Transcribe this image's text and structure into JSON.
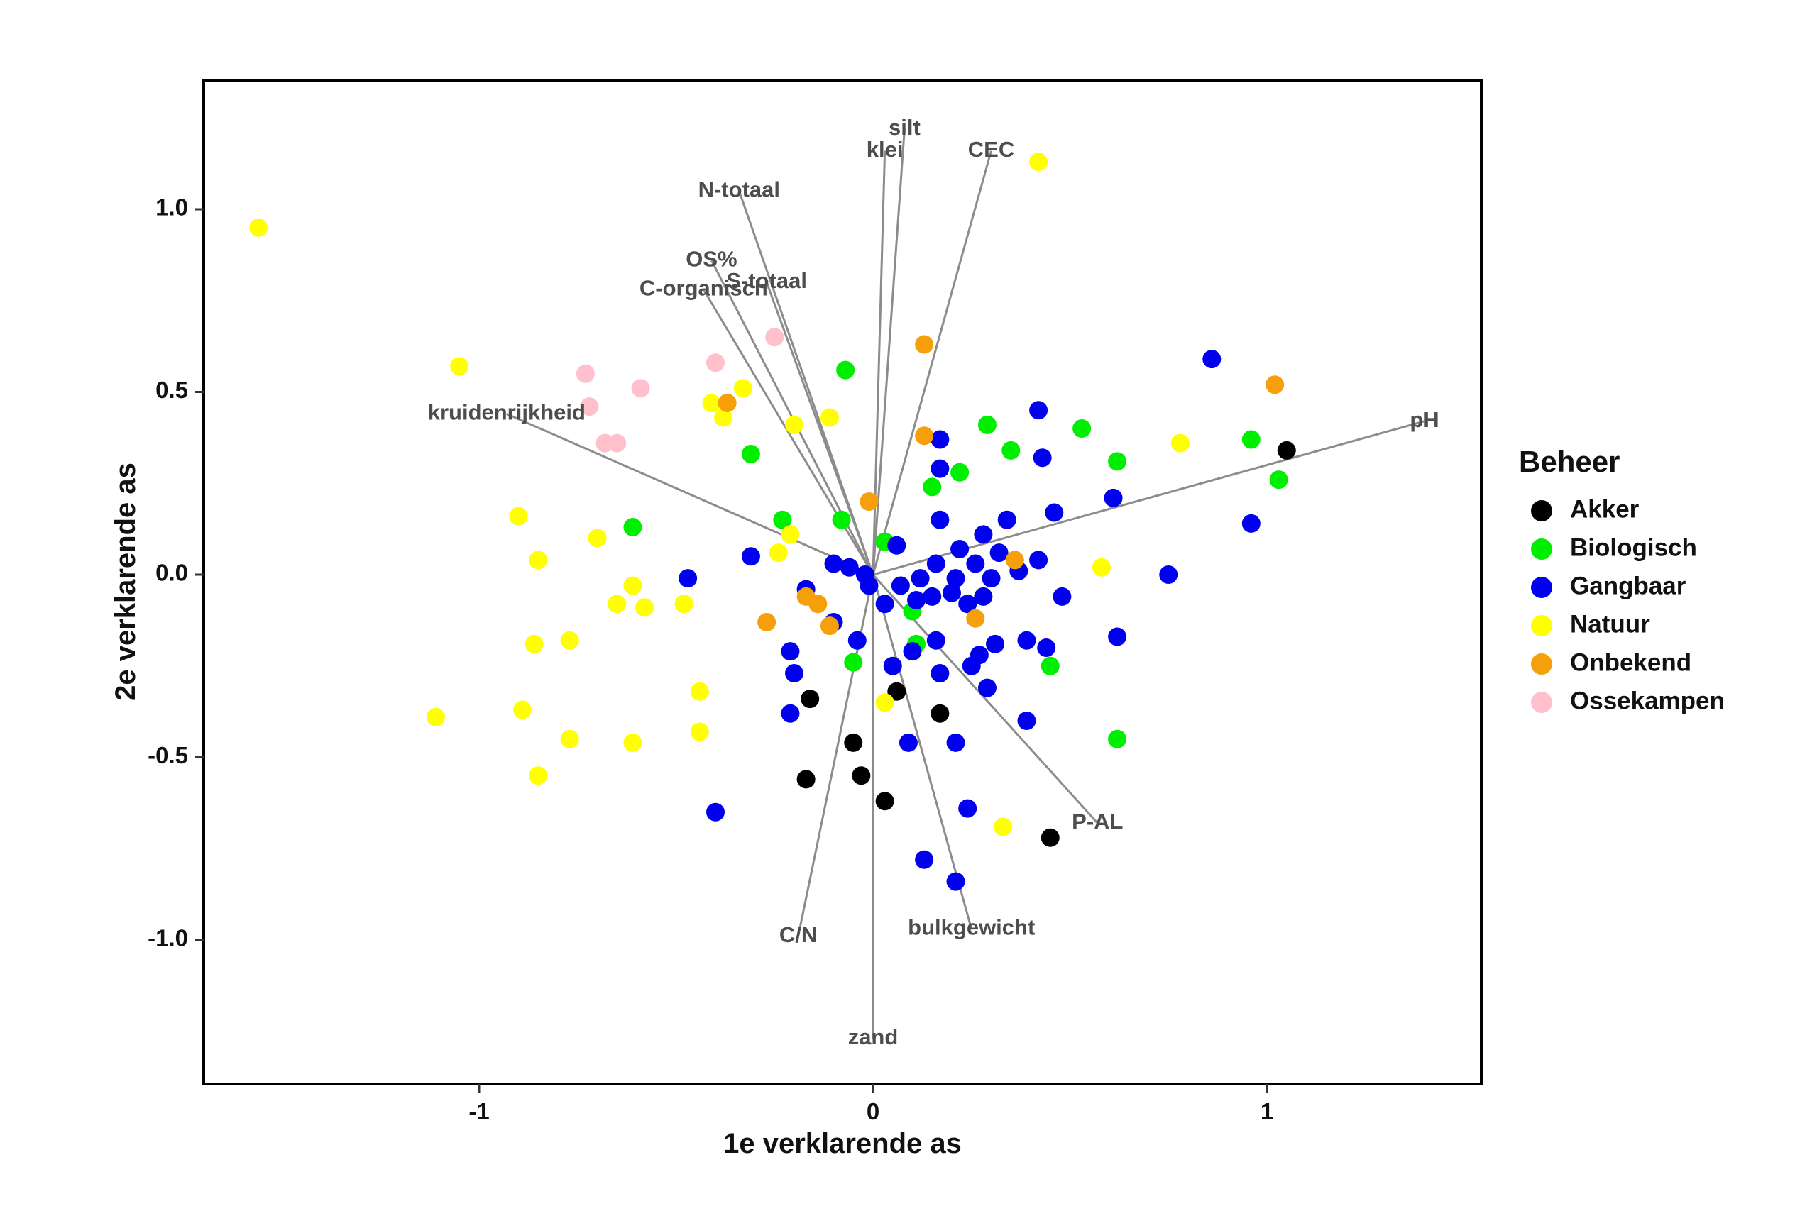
{
  "chart_data": {
    "type": "scatter",
    "xlabel": "1e verklarende as",
    "ylabel": "2e verklarende as",
    "xlim": [
      -1.7,
      1.55
    ],
    "ylim": [
      -1.4,
      1.35
    ],
    "x_ticks": [
      {
        "value": -1,
        "label": "-1"
      },
      {
        "value": 0,
        "label": "0"
      },
      {
        "value": 1,
        "label": "1"
      }
    ],
    "y_ticks": [
      {
        "value": -1,
        "label": "-1.0"
      },
      {
        "value": -0.5,
        "label": "-0.5"
      },
      {
        "value": 0,
        "label": "0.0"
      },
      {
        "value": 0.5,
        "label": "0.5"
      },
      {
        "value": 1,
        "label": "1.0"
      }
    ],
    "grid": false,
    "legend": {
      "title": "Beheer",
      "position": "right",
      "entries": [
        {
          "label": "Akker",
          "color": "#000000"
        },
        {
          "label": "Biologisch",
          "color": "#00ee00"
        },
        {
          "label": "Gangbaar",
          "color": "#0000ee"
        },
        {
          "label": "Natuur",
          "color": "#ffff00"
        },
        {
          "label": "Onbekend",
          "color": "#f5a00a"
        },
        {
          "label": "Ossekampen",
          "color": "#ffc0cb"
        }
      ]
    },
    "vectors": [
      {
        "label": "silt",
        "x": 0.08,
        "y": 1.22
      },
      {
        "label": "klei",
        "x": 0.03,
        "y": 1.16
      },
      {
        "label": "CEC",
        "x": 0.3,
        "y": 1.16
      },
      {
        "label": "N-totaal",
        "x": -0.34,
        "y": 1.05
      },
      {
        "label": "OS%",
        "x": -0.41,
        "y": 0.86
      },
      {
        "label": "S-totaal",
        "x": -0.27,
        "y": 0.8
      },
      {
        "label": "C-organisch",
        "x": -0.43,
        "y": 0.78
      },
      {
        "label": "kruidenrijkheid",
        "x": -0.93,
        "y": 0.44
      },
      {
        "label": "pH",
        "x": 1.4,
        "y": 0.42
      },
      {
        "label": "P-AL",
        "x": 0.57,
        "y": -0.68
      },
      {
        "label": "bulkgewicht",
        "x": 0.25,
        "y": -0.97
      },
      {
        "label": "C/N",
        "x": -0.19,
        "y": -0.99
      },
      {
        "label": "zand",
        "x": 0.0,
        "y": -1.27
      }
    ],
    "series": [
      {
        "name": "Akker",
        "points": [
          [
            1.05,
            0.34
          ],
          [
            0.06,
            -0.32
          ],
          [
            -0.16,
            -0.34
          ],
          [
            0.17,
            -0.38
          ],
          [
            -0.05,
            -0.46
          ],
          [
            -0.03,
            -0.55
          ],
          [
            -0.17,
            -0.56
          ],
          [
            0.03,
            -0.62
          ],
          [
            0.45,
            -0.72
          ]
        ]
      },
      {
        "name": "Biologisch",
        "points": [
          [
            -0.31,
            0.33
          ],
          [
            -0.08,
            0.15
          ],
          [
            -0.23,
            0.15
          ],
          [
            -0.61,
            0.13
          ],
          [
            -0.07,
            0.56
          ],
          [
            0.29,
            0.41
          ],
          [
            0.53,
            0.4
          ],
          [
            0.35,
            0.34
          ],
          [
            0.62,
            0.31
          ],
          [
            0.22,
            0.28
          ],
          [
            0.15,
            0.24
          ],
          [
            0.96,
            0.37
          ],
          [
            1.03,
            0.26
          ],
          [
            0.03,
            0.09
          ],
          [
            0.1,
            -0.1
          ],
          [
            0.11,
            -0.19
          ],
          [
            -0.05,
            -0.24
          ],
          [
            0.45,
            -0.25
          ],
          [
            0.62,
            -0.45
          ]
        ]
      },
      {
        "name": "Gangbaar",
        "points": [
          [
            0.86,
            0.59
          ],
          [
            0.42,
            0.45
          ],
          [
            0.17,
            0.37
          ],
          [
            0.43,
            0.32
          ],
          [
            0.17,
            0.29
          ],
          [
            0.61,
            0.21
          ],
          [
            0.46,
            0.17
          ],
          [
            0.17,
            0.15
          ],
          [
            0.34,
            0.15
          ],
          [
            0.28,
            0.11
          ],
          [
            0.96,
            0.14
          ],
          [
            0.06,
            0.08
          ],
          [
            0.22,
            0.07
          ],
          [
            0.32,
            0.06
          ],
          [
            0.42,
            0.04
          ],
          [
            -0.31,
            0.05
          ],
          [
            -0.1,
            0.03
          ],
          [
            -0.06,
            0.02
          ],
          [
            0.26,
            0.03
          ],
          [
            0.16,
            0.03
          ],
          [
            0.37,
            0.01
          ],
          [
            0.75,
            0.0
          ],
          [
            -0.47,
            -0.01
          ],
          [
            -0.02,
            0.0
          ],
          [
            0.21,
            -0.01
          ],
          [
            0.12,
            -0.01
          ],
          [
            0.3,
            -0.01
          ],
          [
            -0.01,
            -0.03
          ],
          [
            0.07,
            -0.03
          ],
          [
            -0.17,
            -0.04
          ],
          [
            0.2,
            -0.05
          ],
          [
            0.15,
            -0.06
          ],
          [
            0.28,
            -0.06
          ],
          [
            0.48,
            -0.06
          ],
          [
            0.03,
            -0.08
          ],
          [
            0.24,
            -0.08
          ],
          [
            0.11,
            -0.07
          ],
          [
            -0.1,
            -0.13
          ],
          [
            0.62,
            -0.17
          ],
          [
            0.16,
            -0.18
          ],
          [
            0.31,
            -0.19
          ],
          [
            0.39,
            -0.18
          ],
          [
            0.44,
            -0.2
          ],
          [
            -0.04,
            -0.18
          ],
          [
            0.27,
            -0.22
          ],
          [
            0.1,
            -0.21
          ],
          [
            0.05,
            -0.25
          ],
          [
            -0.21,
            -0.21
          ],
          [
            0.25,
            -0.25
          ],
          [
            -0.2,
            -0.27
          ],
          [
            0.17,
            -0.27
          ],
          [
            0.29,
            -0.31
          ],
          [
            -0.21,
            -0.38
          ],
          [
            0.39,
            -0.4
          ],
          [
            0.09,
            -0.46
          ],
          [
            0.21,
            -0.46
          ],
          [
            0.24,
            -0.64
          ],
          [
            -0.4,
            -0.65
          ],
          [
            0.13,
            -0.78
          ],
          [
            0.21,
            -0.84
          ]
        ]
      },
      {
        "name": "Natuur",
        "points": [
          [
            -1.56,
            0.95
          ],
          [
            0.42,
            1.13
          ],
          [
            -1.05,
            0.57
          ],
          [
            -0.33,
            0.51
          ],
          [
            -0.41,
            0.47
          ],
          [
            -0.38,
            0.43
          ],
          [
            -0.11,
            0.43
          ],
          [
            -0.2,
            0.41
          ],
          [
            0.78,
            0.36
          ],
          [
            -0.9,
            0.16
          ],
          [
            -0.7,
            0.1
          ],
          [
            -0.21,
            0.11
          ],
          [
            -0.24,
            0.06
          ],
          [
            -0.85,
            0.04
          ],
          [
            0.58,
            0.02
          ],
          [
            -0.61,
            -0.03
          ],
          [
            -0.65,
            -0.08
          ],
          [
            -0.58,
            -0.09
          ],
          [
            -0.48,
            -0.08
          ],
          [
            -0.77,
            -0.18
          ],
          [
            -0.86,
            -0.19
          ],
          [
            -0.44,
            -0.32
          ],
          [
            -0.89,
            -0.37
          ],
          [
            -1.11,
            -0.39
          ],
          [
            -0.44,
            -0.43
          ],
          [
            -0.77,
            -0.45
          ],
          [
            -0.61,
            -0.46
          ],
          [
            -0.85,
            -0.55
          ],
          [
            0.03,
            -0.35
          ],
          [
            0.33,
            -0.69
          ]
        ]
      },
      {
        "name": "Onbekend",
        "points": [
          [
            0.13,
            0.63
          ],
          [
            1.02,
            0.52
          ],
          [
            -0.37,
            0.47
          ],
          [
            0.13,
            0.38
          ],
          [
            -0.01,
            0.2
          ],
          [
            0.36,
            0.04
          ],
          [
            -0.17,
            -0.06
          ],
          [
            -0.14,
            -0.08
          ],
          [
            0.26,
            -0.12
          ],
          [
            -0.27,
            -0.13
          ],
          [
            -0.11,
            -0.14
          ]
        ]
      },
      {
        "name": "Ossekampen",
        "points": [
          [
            -0.4,
            0.58
          ],
          [
            -0.25,
            0.65
          ],
          [
            -0.73,
            0.55
          ],
          [
            -0.59,
            0.51
          ],
          [
            -0.72,
            0.46
          ],
          [
            -0.68,
            0.36
          ],
          [
            -0.65,
            0.36
          ]
        ]
      }
    ]
  }
}
